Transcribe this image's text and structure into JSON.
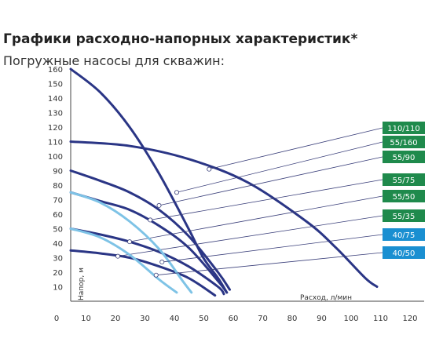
{
  "header": {
    "title": "Графики расходно-напорных характеристик*",
    "subtitle": "Погружные насосы для скважин:"
  },
  "colors": {
    "dark_blue": "#2a3585",
    "light_blue": "#7ec3e6",
    "green_badge": "#1f8a4c",
    "blue_badge": "#1a8fd1"
  },
  "chart_data": {
    "type": "line",
    "xlabel": "Расход, л/мин",
    "ylabel": "Напор, м",
    "xlim": [
      0,
      120
    ],
    "ylim": [
      0,
      160
    ],
    "x_ticks": [
      0,
      10,
      20,
      30,
      40,
      50,
      60,
      70,
      80,
      90,
      100,
      110,
      120
    ],
    "y_ticks": [
      10,
      20,
      30,
      40,
      50,
      60,
      70,
      80,
      90,
      100,
      110,
      120,
      130,
      140,
      150,
      160
    ],
    "grid": false,
    "series": [
      {
        "name": "110/110",
        "color": "#2a3585",
        "x": [
          0,
          20,
          40,
          60,
          80,
          90,
          100,
          104
        ],
        "y": [
          110,
          107,
          98,
          82,
          55,
          37,
          16,
          10
        ],
        "marker": [
          47,
          91
        ],
        "badge": "#1f8a4c"
      },
      {
        "name": "55/160",
        "color": "#2a3585",
        "x": [
          0,
          10,
          20,
          30,
          40,
          45,
          50,
          53
        ],
        "y": [
          160,
          144,
          120,
          88,
          50,
          30,
          16,
          6
        ],
        "marker": [
          36,
          75
        ],
        "badge": "#1f8a4c"
      },
      {
        "name": "55/90",
        "color": "#2a3585",
        "x": [
          0,
          10,
          20,
          30,
          40,
          50,
          54
        ],
        "y": [
          90,
          83,
          75,
          63,
          45,
          20,
          8
        ],
        "marker": [
          30,
          66
        ],
        "badge": "#1f8a4c"
      },
      {
        "name": "55/75",
        "color": "#2a3585",
        "x": [
          0,
          10,
          20,
          30,
          40,
          50,
          53
        ],
        "y": [
          75,
          69,
          63,
          52,
          37,
          14,
          6
        ],
        "marker": [
          27,
          56
        ],
        "badge": "#1f8a4c"
      },
      {
        "name": "55/50",
        "color": "#2a3585",
        "x": [
          0,
          10,
          20,
          30,
          40,
          50,
          52
        ],
        "y": [
          50,
          46,
          41,
          34,
          24,
          10,
          5
        ],
        "marker": [
          20,
          41
        ],
        "badge": "#1f8a4c"
      },
      {
        "name": "55/35",
        "color": "#2a3585",
        "x": [
          0,
          10,
          20,
          30,
          40,
          49
        ],
        "y": [
          35,
          33,
          30,
          24,
          16,
          4
        ],
        "marker": [
          16,
          31
        ],
        "badge": "#1f8a4c"
      },
      {
        "name": "40/75",
        "color": "#7ec3e6",
        "x": [
          0,
          10,
          20,
          30,
          38,
          41
        ],
        "y": [
          75,
          68,
          55,
          36,
          14,
          6
        ],
        "marker": [
          31,
          27
        ],
        "badge": "#1a8fd1"
      },
      {
        "name": "40/50",
        "color": "#7ec3e6",
        "x": [
          0,
          10,
          20,
          30,
          36
        ],
        "y": [
          50,
          44,
          32,
          15,
          6
        ],
        "marker": [
          29,
          18
        ],
        "badge": "#1a8fd1"
      }
    ]
  }
}
